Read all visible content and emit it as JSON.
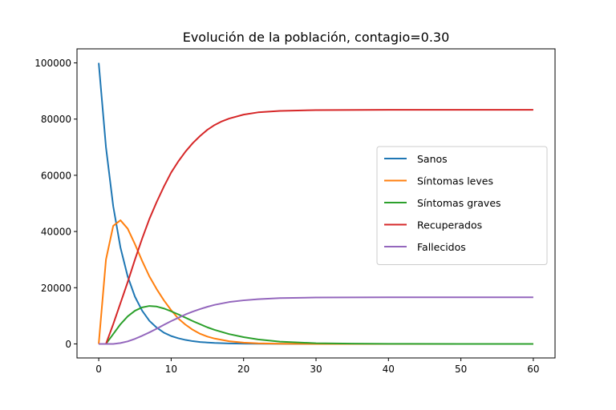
{
  "chart_data": {
    "type": "line",
    "title": "Evolución de la población, contagio=0.30",
    "xlabel": "",
    "ylabel": "",
    "xlim": [
      -3,
      63
    ],
    "ylim": [
      -5000,
      105000
    ],
    "xticks": [
      0,
      10,
      20,
      30,
      40,
      50,
      60
    ],
    "yticks": [
      0,
      20000,
      40000,
      60000,
      80000,
      100000
    ],
    "grid": false,
    "legend_position": "center-right",
    "series": [
      {
        "name": "Sanos",
        "color": "#1f77b4",
        "points": [
          [
            0,
            100000
          ],
          [
            1,
            70000
          ],
          [
            2,
            49000
          ],
          [
            3,
            34300
          ],
          [
            4,
            24000
          ],
          [
            5,
            16800
          ],
          [
            6,
            11800
          ],
          [
            7,
            8200
          ],
          [
            8,
            5800
          ],
          [
            9,
            4000
          ],
          [
            10,
            2800
          ],
          [
            11,
            2000
          ],
          [
            12,
            1400
          ],
          [
            13,
            970
          ],
          [
            14,
            680
          ],
          [
            15,
            480
          ],
          [
            16,
            330
          ],
          [
            18,
            160
          ],
          [
            20,
            80
          ],
          [
            22,
            40
          ],
          [
            25,
            10
          ],
          [
            30,
            0
          ],
          [
            40,
            0
          ],
          [
            50,
            0
          ],
          [
            60,
            0
          ]
        ]
      },
      {
        "name": "Síntomas leves",
        "color": "#ff7f0e",
        "points": [
          [
            0,
            0
          ],
          [
            1,
            30000
          ],
          [
            2,
            42000
          ],
          [
            3,
            44000
          ],
          [
            4,
            41000
          ],
          [
            5,
            35500
          ],
          [
            6,
            29500
          ],
          [
            7,
            24000
          ],
          [
            8,
            19500
          ],
          [
            9,
            15500
          ],
          [
            10,
            12000
          ],
          [
            11,
            9000
          ],
          [
            12,
            6800
          ],
          [
            13,
            5000
          ],
          [
            14,
            3600
          ],
          [
            15,
            2600
          ],
          [
            16,
            1900
          ],
          [
            18,
            950
          ],
          [
            20,
            450
          ],
          [
            22,
            200
          ],
          [
            25,
            60
          ],
          [
            30,
            5
          ],
          [
            40,
            0
          ],
          [
            50,
            0
          ],
          [
            60,
            0
          ]
        ]
      },
      {
        "name": "Síntomas graves",
        "color": "#2ca02c",
        "points": [
          [
            0,
            0
          ],
          [
            1,
            0
          ],
          [
            2,
            3500
          ],
          [
            3,
            7000
          ],
          [
            4,
            9800
          ],
          [
            5,
            11800
          ],
          [
            6,
            13000
          ],
          [
            7,
            13500
          ],
          [
            8,
            13300
          ],
          [
            9,
            12600
          ],
          [
            10,
            11600
          ],
          [
            11,
            10500
          ],
          [
            12,
            9300
          ],
          [
            13,
            8100
          ],
          [
            14,
            7000
          ],
          [
            15,
            5900
          ],
          [
            16,
            5000
          ],
          [
            18,
            3500
          ],
          [
            20,
            2400
          ],
          [
            22,
            1600
          ],
          [
            25,
            800
          ],
          [
            30,
            250
          ],
          [
            35,
            80
          ],
          [
            40,
            25
          ],
          [
            50,
            2
          ],
          [
            60,
            0
          ]
        ]
      },
      {
        "name": "Recuperados",
        "color": "#d62728",
        "points": [
          [
            0,
            0
          ],
          [
            1,
            0
          ],
          [
            2,
            7000
          ],
          [
            3,
            14500
          ],
          [
            4,
            22000
          ],
          [
            5,
            30000
          ],
          [
            6,
            37500
          ],
          [
            7,
            44500
          ],
          [
            8,
            50500
          ],
          [
            9,
            56000
          ],
          [
            10,
            61000
          ],
          [
            11,
            65000
          ],
          [
            12,
            68500
          ],
          [
            13,
            71500
          ],
          [
            14,
            74000
          ],
          [
            15,
            76200
          ],
          [
            16,
            77900
          ],
          [
            17,
            79200
          ],
          [
            18,
            80200
          ],
          [
            20,
            81600
          ],
          [
            22,
            82400
          ],
          [
            25,
            82900
          ],
          [
            30,
            83200
          ],
          [
            40,
            83300
          ],
          [
            50,
            83300
          ],
          [
            60,
            83300
          ]
        ]
      },
      {
        "name": "Fallecidos",
        "color": "#9467bd",
        "points": [
          [
            0,
            0
          ],
          [
            1,
            0
          ],
          [
            2,
            0
          ],
          [
            3,
            300
          ],
          [
            4,
            900
          ],
          [
            5,
            1800
          ],
          [
            6,
            2900
          ],
          [
            7,
            4100
          ],
          [
            8,
            5400
          ],
          [
            9,
            6800
          ],
          [
            10,
            8100
          ],
          [
            11,
            9300
          ],
          [
            12,
            10500
          ],
          [
            13,
            11500
          ],
          [
            14,
            12400
          ],
          [
            15,
            13200
          ],
          [
            16,
            13900
          ],
          [
            18,
            14900
          ],
          [
            20,
            15500
          ],
          [
            22,
            15900
          ],
          [
            25,
            16300
          ],
          [
            30,
            16500
          ],
          [
            40,
            16600
          ],
          [
            50,
            16600
          ],
          [
            60,
            16600
          ]
        ]
      }
    ]
  }
}
